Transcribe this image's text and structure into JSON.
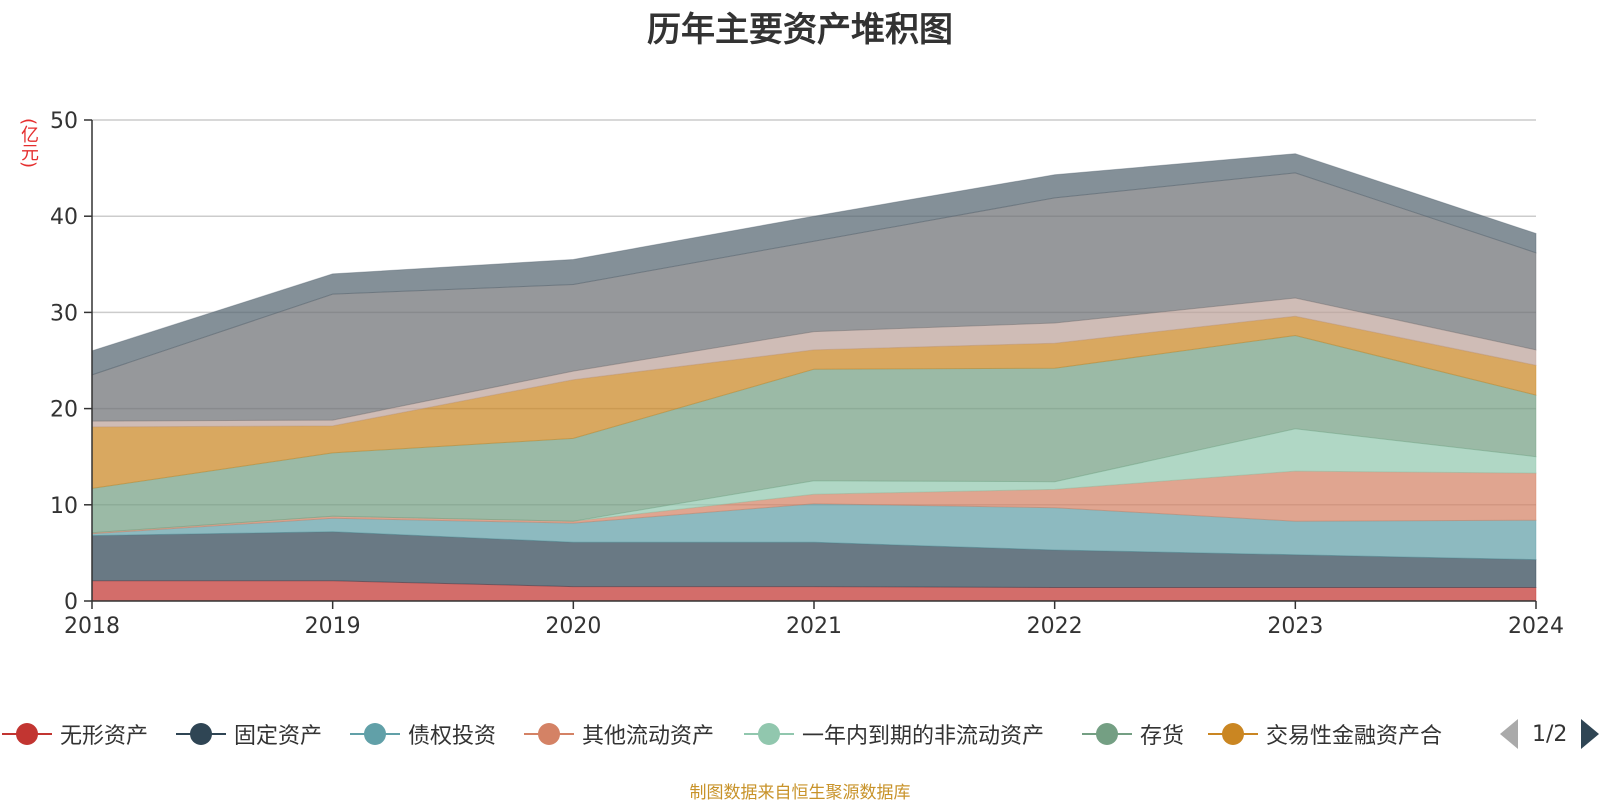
{
  "chart_data": {
    "type": "area",
    "stacked": true,
    "title": "历年主要资产堆积图",
    "ylabel": "(亿元)",
    "xlabel": "",
    "ylim": [
      0,
      50
    ],
    "yticks": [
      0,
      10,
      20,
      30,
      40,
      50
    ],
    "grid": true,
    "categories": [
      "2018",
      "2019",
      "2020",
      "2021",
      "2022",
      "2023",
      "2024"
    ],
    "series": [
      {
        "name": "无形资产",
        "color": "#c23531",
        "values": [
          2.1,
          2.1,
          1.5,
          1.5,
          1.4,
          1.4,
          1.4
        ]
      },
      {
        "name": "固定资产",
        "color": "#2f4554",
        "values": [
          4.7,
          5.1,
          4.6,
          4.6,
          3.9,
          3.4,
          2.9
        ]
      },
      {
        "name": "债权投资",
        "color": "#61a0a8",
        "values": [
          0.2,
          1.4,
          2.0,
          4.0,
          4.4,
          3.5,
          4.1
        ]
      },
      {
        "name": "其他流动资产",
        "color": "#d48265",
        "values": [
          0.1,
          0.2,
          0.2,
          1.0,
          1.9,
          5.2,
          4.9
        ]
      },
      {
        "name": "一年内到期的非流动资产",
        "color": "#91c7ae",
        "values": [
          0.0,
          0.0,
          0.0,
          1.4,
          0.8,
          4.4,
          1.7
        ]
      },
      {
        "name": "存货",
        "color": "#749f83",
        "values": [
          4.6,
          6.6,
          8.6,
          11.6,
          11.8,
          9.7,
          6.4
        ]
      },
      {
        "name": "交易性金融资产合",
        "color": "#ca8622",
        "values": [
          6.4,
          2.8,
          6.1,
          2.0,
          2.6,
          2.0,
          3.1
        ]
      },
      {
        "name": "",
        "color": "#bda29a",
        "values": [
          0.6,
          0.6,
          0.9,
          1.9,
          2.1,
          1.9,
          1.6
        ]
      },
      {
        "name": "",
        "color": "#6e7074",
        "values": [
          4.8,
          13.1,
          9.0,
          9.4,
          13.0,
          13.0,
          10.1
        ]
      },
      {
        "name": "",
        "color": "#546570",
        "values": [
          2.5,
          2.1,
          2.6,
          2.6,
          2.4,
          2.0,
          2.0
        ]
      }
    ],
    "legend_visible": [
      "无形资产",
      "固定资产",
      "债权投资",
      "其他流动资产",
      "一年内到期的非流动资产",
      "存货",
      "交易性金融资产合"
    ]
  },
  "legend": {
    "items": [
      {
        "label": "无形资产",
        "color": "#c23531"
      },
      {
        "label": "固定资产",
        "color": "#2f4554"
      },
      {
        "label": "债权投资",
        "color": "#61a0a8"
      },
      {
        "label": "其他流动资产",
        "color": "#d48265"
      },
      {
        "label": "一年内到期的非流动资产",
        "color": "#91c7ae"
      },
      {
        "label": "存货",
        "color": "#749f83"
      },
      {
        "label": "交易性金融资产合",
        "color": "#ca8622"
      }
    ],
    "page": "1/2"
  },
  "footer": {
    "source": "制图数据来自恒生聚源数据库"
  }
}
